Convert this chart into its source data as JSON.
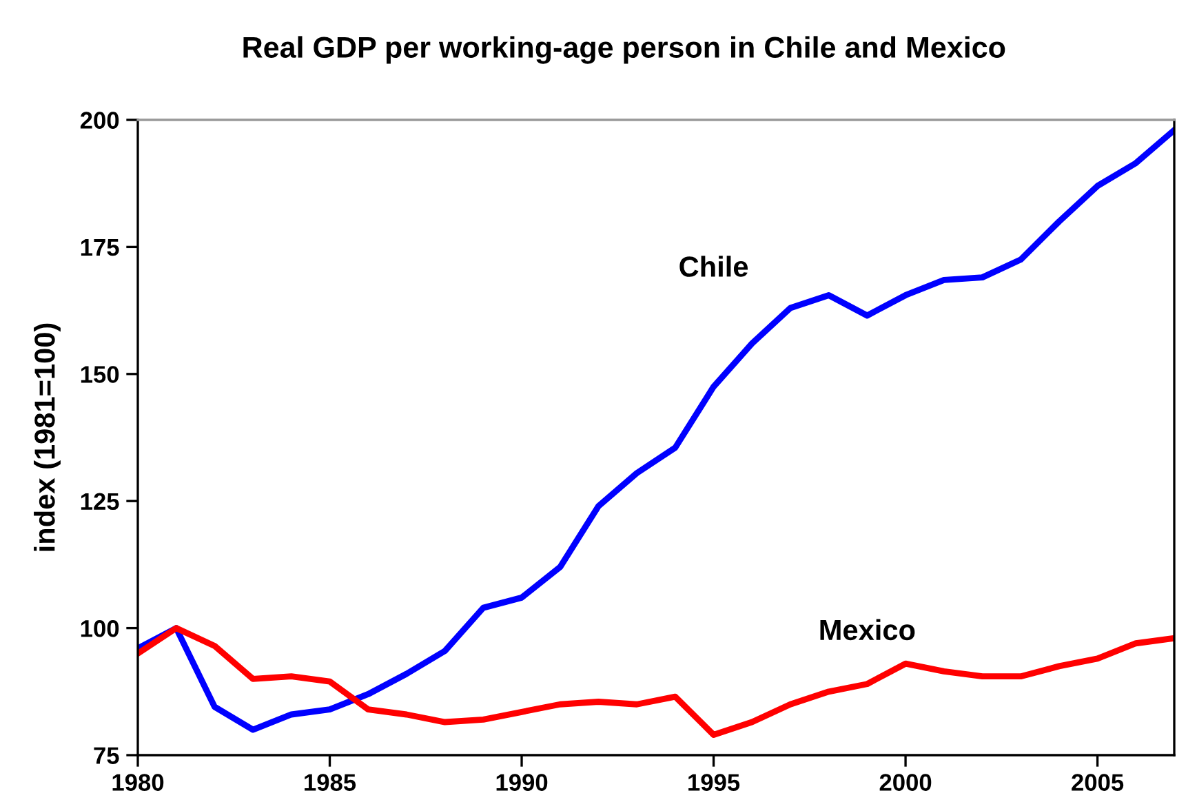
{
  "chart_data": {
    "type": "line",
    "title": "Real GDP per working-age person in Chile and Mexico",
    "ylabel": "index (1981=100)",
    "x": [
      1980,
      1981,
      1982,
      1983,
      1984,
      1985,
      1986,
      1987,
      1988,
      1989,
      1990,
      1991,
      1992,
      1993,
      1994,
      1995,
      1996,
      1997,
      1998,
      1999,
      2000,
      2001,
      2002,
      2003,
      2004,
      2005,
      2006,
      2007
    ],
    "series": [
      {
        "name": "Chile",
        "color": "#0000ff",
        "values": [
          96,
          100,
          84.5,
          80,
          83,
          84,
          87,
          91,
          95.5,
          104,
          106,
          112,
          124,
          130.5,
          135.5,
          147.5,
          156,
          163,
          165.5,
          161.5,
          165.5,
          168.5,
          169,
          172.5,
          180,
          187,
          191.5,
          198
        ]
      },
      {
        "name": "Mexico",
        "color": "#ff0000",
        "values": [
          95,
          100,
          96.5,
          90,
          90.5,
          89.5,
          84,
          83,
          81.5,
          82,
          83.5,
          85,
          85.5,
          85,
          86.5,
          79,
          81.5,
          85,
          87.5,
          89,
          93,
          91.5,
          90.5,
          90.5,
          92.5,
          94,
          97,
          98
        ]
      }
    ],
    "xlim": [
      1980,
      2007
    ],
    "ylim": [
      75,
      200
    ],
    "xticks": [
      1980,
      1985,
      1990,
      1995,
      2000,
      2005
    ],
    "yticks": [
      75,
      100,
      125,
      150,
      175,
      200
    ],
    "grid": false,
    "legend": false,
    "marker": "none",
    "line_style": "solid"
  }
}
